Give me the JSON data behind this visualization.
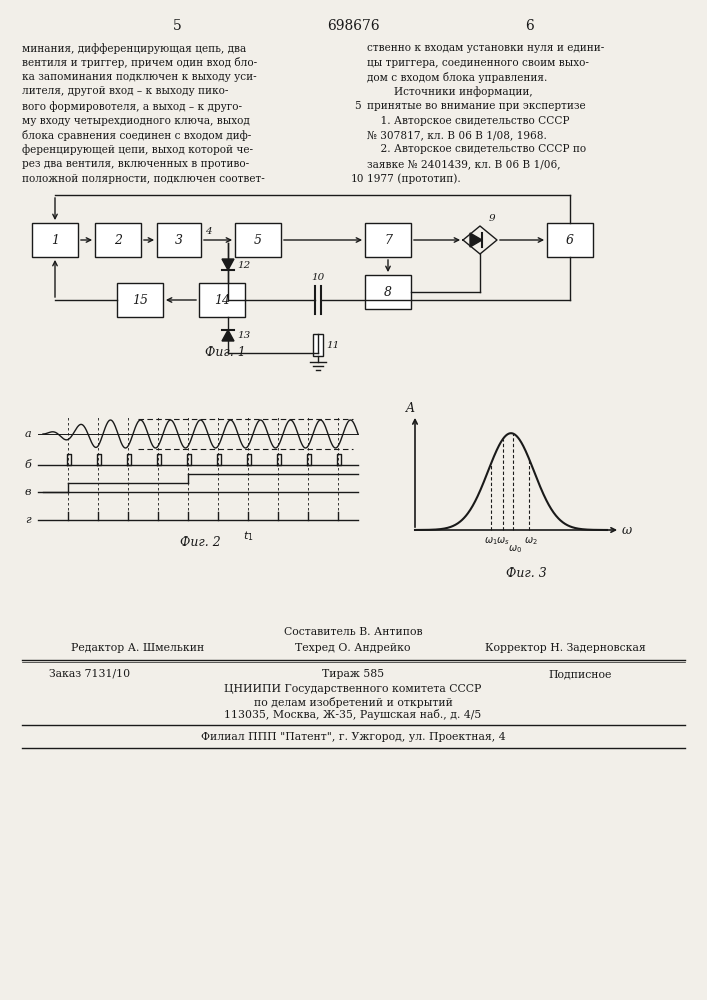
{
  "page_number_left": "5",
  "patent_number": "698676",
  "page_number_right": "6",
  "text_left": "минания, дифференцирующая цепь, два\nвентиля и триггер, причем один вход бло-\nка запоминания подключен к выходу уси-\nлителя, другой вход – к выходу пико-\nвого формировотеля, а выход – к друго-\nму входу четырехдиодного ключа, выход\nблока сравнения соединен с входом диф-\nференцирующей цепи, выход которой че-\nрез два вентиля, включенных в противо-\nположной полярности, подключен соответ-",
  "line_number_10": "10",
  "line_number_5": "5",
  "text_right": "ственно к входам установки нуля и едини-\nцы триггера, соединенного своим выхо-\nдом с входом блока управления.\n        Источники информации,\nпринятые во внимание при экспертизе\n    1. Авторское свидетельство СССР\n№ 307817, кл. В 06 В 1/08, 1968.\n    2. Авторское свидетельство СССР по\nзаявке № 2401439, кл. В 06 В 1/06,\n1977 (прототип).",
  "editor_label": "Редактор А. Шмелькин",
  "composer_label": "Составитель В. Антипов",
  "techred_label": "Техред О. Андрейко",
  "corrector_label": "Корректор Н. Задерновская",
  "order_label": "Заказ 7131/10",
  "circulation_label": "Тираж 585",
  "subscription_label": "Подписное",
  "org_line1": "ЦНИИПИ Государственного комитета СССР",
  "org_line2": "по делам изобретений и открытий",
  "org_line3": "113035, Москва, Ж-35, Раушская наб., д. 4/5",
  "branch_line": "Филиал ППП \"Патент\", г. Ужгород, ул. Проектная, 4",
  "fig1_label": "Фиг. 1",
  "fig2_label": "Фиг. 2",
  "fig3_label": "Фиг. 3",
  "background_color": "#f2efe9",
  "text_color": "#1a1a1a"
}
